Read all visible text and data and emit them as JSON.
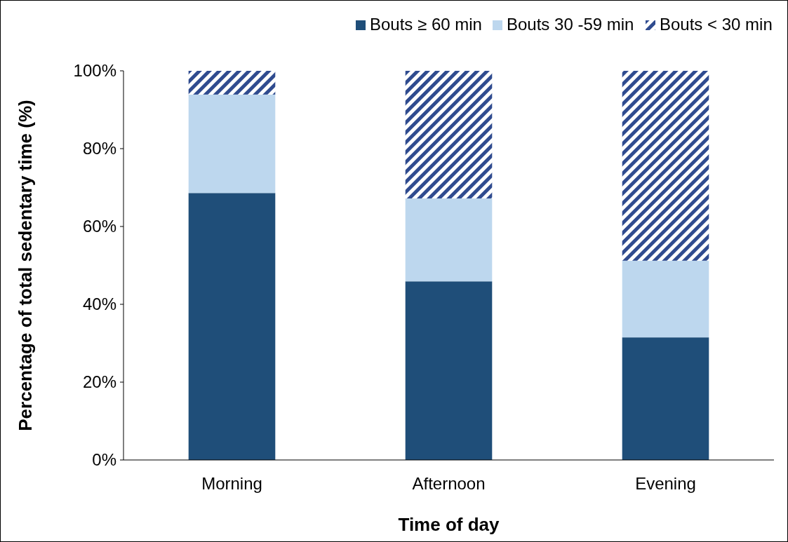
{
  "chart_data": {
    "type": "bar",
    "stacked": true,
    "xlabel": "Time of day",
    "ylabel": "Percentage of total sedentary time (%)",
    "categories": [
      "Morning",
      "Afternoon",
      "Evening"
    ],
    "series": [
      {
        "name": "Bouts ≥ 60 min",
        "color": "#1f4e79",
        "values": [
          68.6,
          45.9,
          31.5
        ]
      },
      {
        "name": "Bouts 30 -59 min",
        "color": "#bdd7ee",
        "values": [
          25.3,
          21.3,
          19.7
        ]
      },
      {
        "name": "Bouts < 30 min",
        "color": "#2f4b8f",
        "values": [
          6.1,
          32.8,
          48.8
        ]
      }
    ],
    "ylim": [
      0,
      100
    ],
    "yticks": [
      {
        "value": 0,
        "label": "0%"
      },
      {
        "value": 20,
        "label": "20%"
      },
      {
        "value": 40,
        "label": "40%"
      },
      {
        "value": 60,
        "label": "60%"
      },
      {
        "value": 80,
        "label": "80%"
      },
      {
        "value": 100,
        "label": "100%"
      }
    ],
    "grid": false,
    "legend": "top right"
  }
}
